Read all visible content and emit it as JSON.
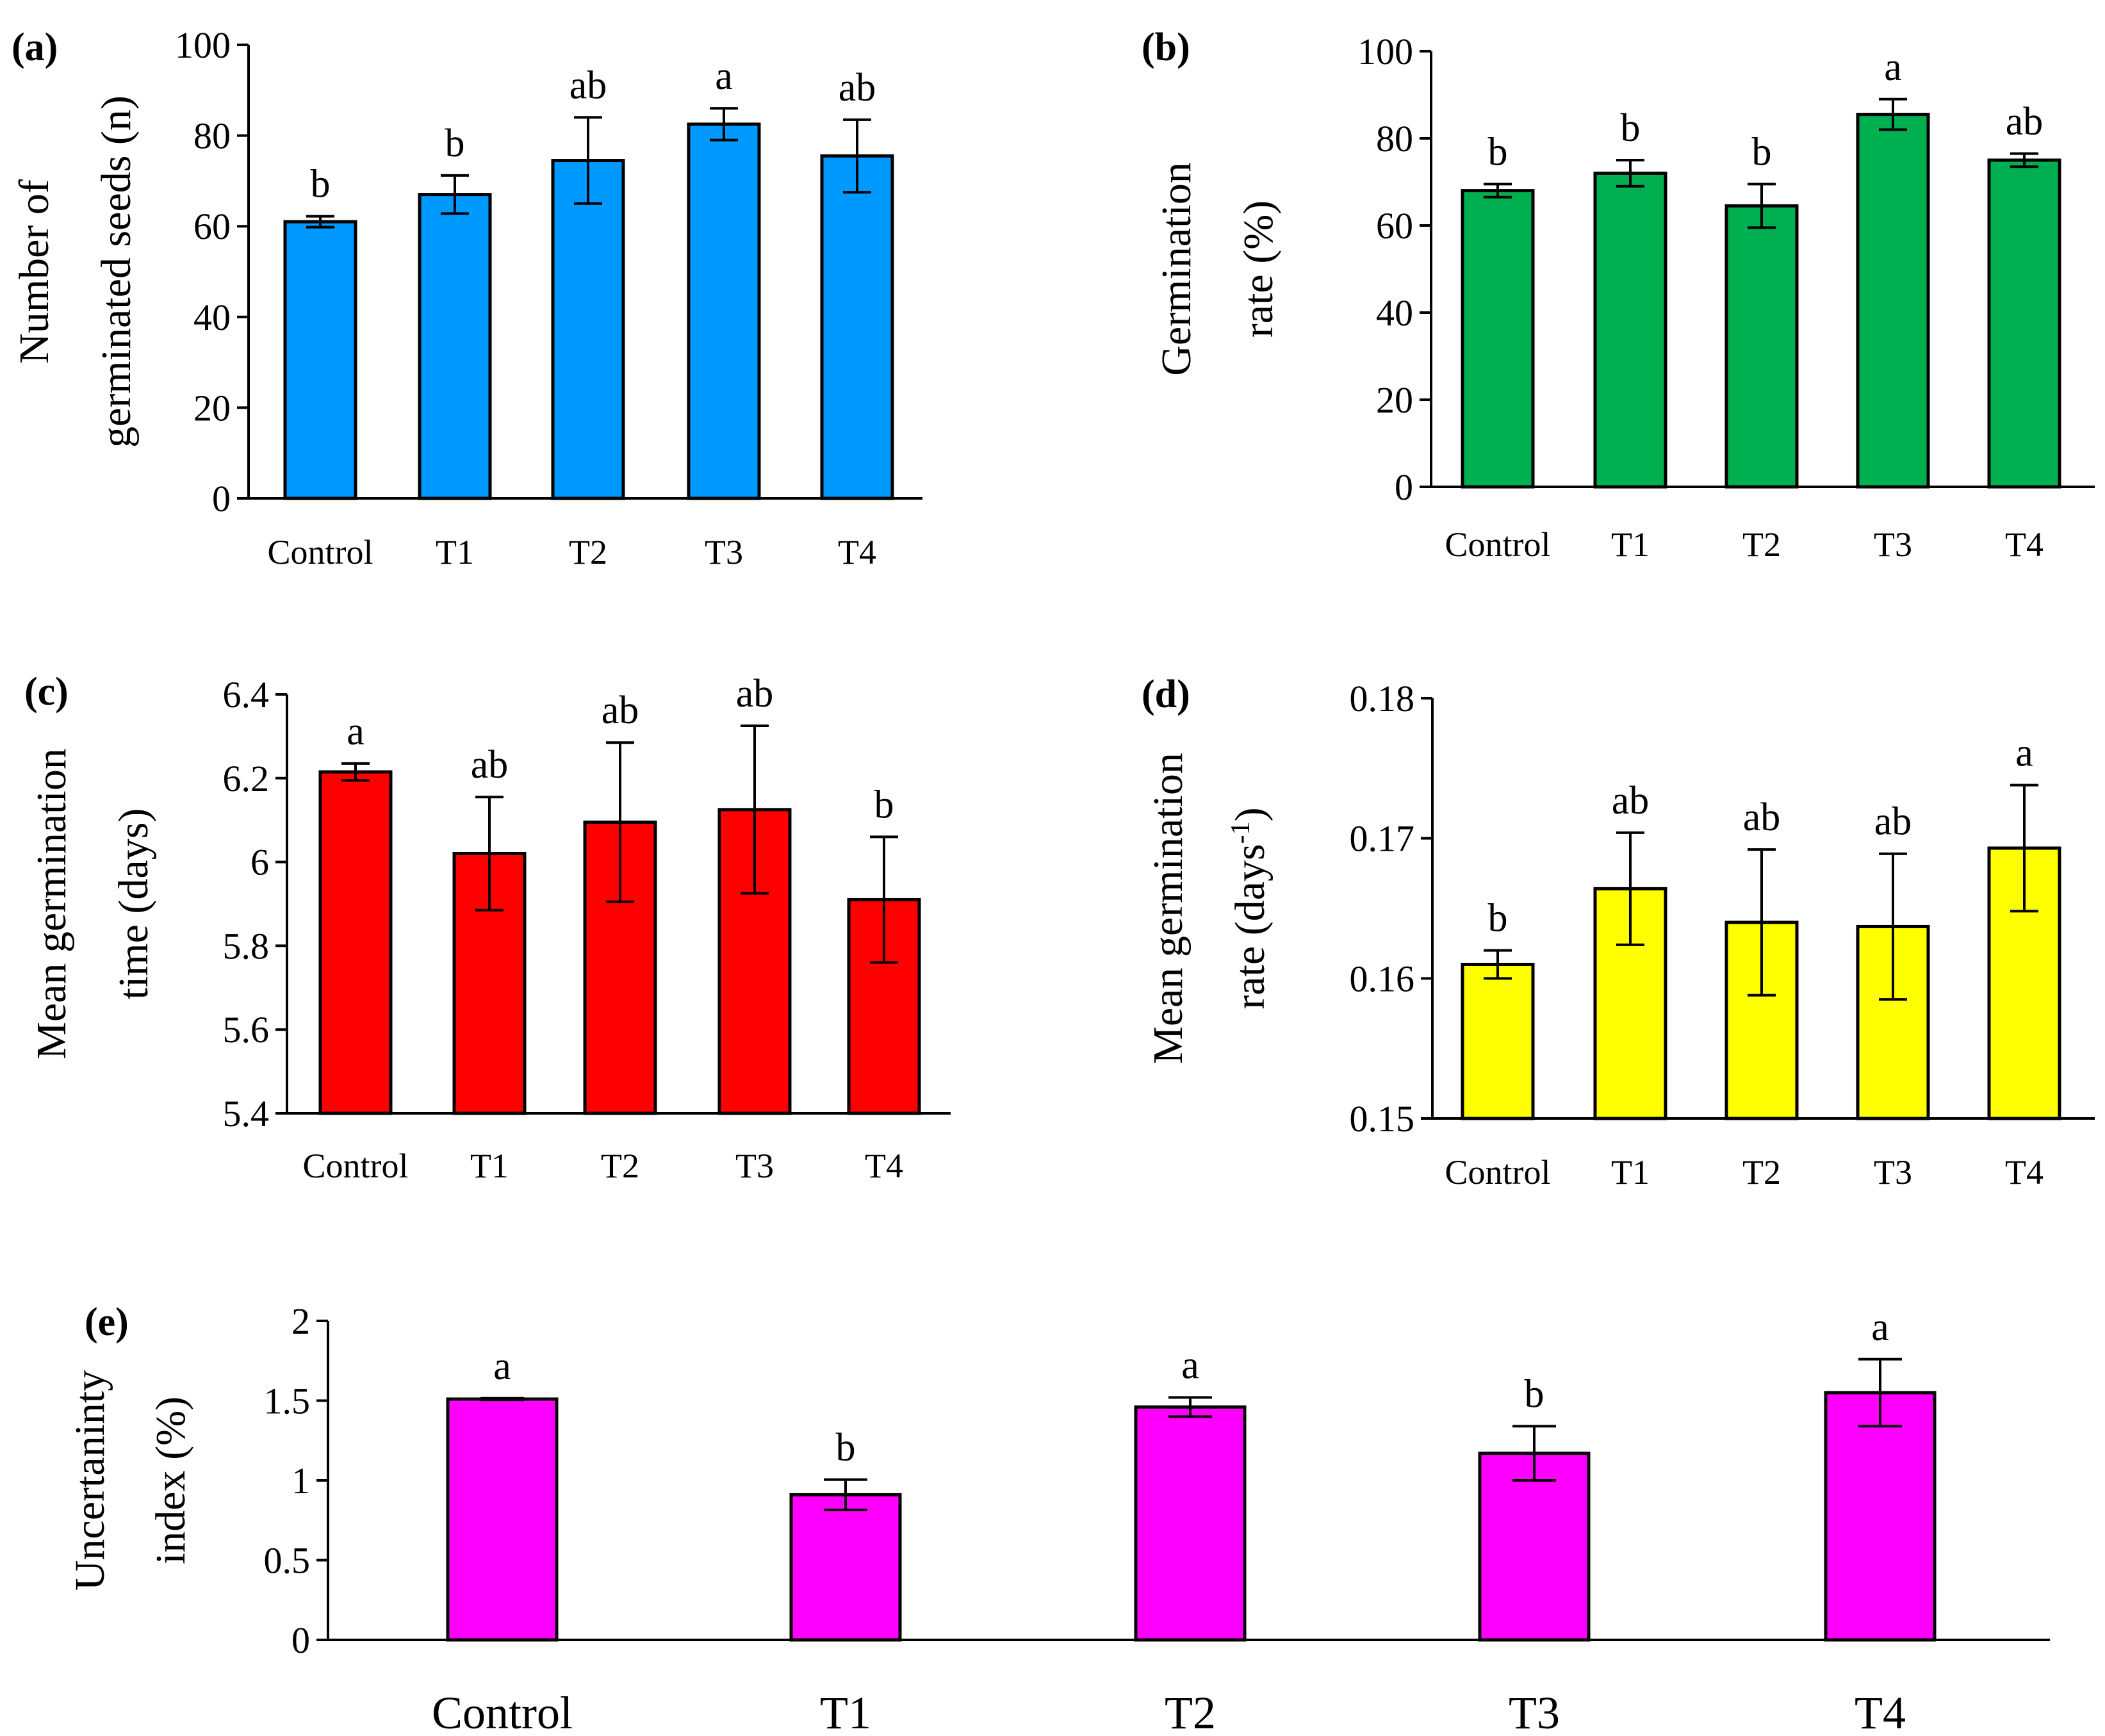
{
  "chart_data": [
    {
      "id": "a",
      "type": "bar",
      "panel_label": "(a)",
      "ylabel_lines": [
        "Number of",
        "germinated seeds (n)"
      ],
      "categories": [
        "Control",
        "T1",
        "T2",
        "T3",
        "T4"
      ],
      "values": [
        61,
        67,
        74.5,
        82.5,
        75.5
      ],
      "errors": [
        1.2,
        4.2,
        9.5,
        3.5,
        8
      ],
      "letters": [
        "b",
        "b",
        "ab",
        "a",
        "ab"
      ],
      "ylim": [
        0,
        100
      ],
      "yticks": [
        0,
        20,
        40,
        60,
        80,
        100
      ],
      "ytick_labels": [
        "0",
        "20",
        "40",
        "60",
        "80",
        "100"
      ],
      "color": "#0099FF"
    },
    {
      "id": "b",
      "type": "bar",
      "panel_label": "(b)",
      "ylabel_lines": [
        "Germination",
        "rate (%)"
      ],
      "categories": [
        "Control",
        "T1",
        "T2",
        "T3",
        "T4"
      ],
      "values": [
        68,
        72,
        64.5,
        85.5,
        75
      ],
      "errors": [
        1.5,
        3,
        5,
        3.5,
        1.5
      ],
      "letters": [
        "b",
        "b",
        "b",
        "a",
        "ab"
      ],
      "ylim": [
        0,
        100
      ],
      "yticks": [
        0,
        20,
        40,
        60,
        80,
        100
      ],
      "ytick_labels": [
        "0",
        "20",
        "40",
        "60",
        "80",
        "100"
      ],
      "color": "#00B050"
    },
    {
      "id": "c",
      "type": "bar",
      "panel_label": "(c)",
      "ylabel_lines": [
        "Mean germination",
        "time (days)"
      ],
      "categories": [
        "Control",
        "T1",
        "T2",
        "T3",
        "T4"
      ],
      "values": [
        6.215,
        6.02,
        6.095,
        6.125,
        5.91
      ],
      "errors": [
        0.02,
        0.135,
        0.19,
        0.2,
        0.15
      ],
      "letters": [
        "a",
        "ab",
        "ab",
        "ab",
        "b"
      ],
      "ylim": [
        5.4,
        6.4
      ],
      "yticks": [
        5.4,
        5.6,
        5.8,
        6.0,
        6.2,
        6.4
      ],
      "ytick_labels": [
        "5.4",
        "5.6",
        "5.8",
        "6",
        "6.2",
        "6.4"
      ],
      "color": "#FF0000"
    },
    {
      "id": "d",
      "type": "bar",
      "panel_label": "(d)",
      "ylabel_lines": [
        "Mean germination",
        "rate (days"
      ],
      "ylabel_sup": "-1",
      "ylabel_tail": ")",
      "categories": [
        "Control",
        "T1",
        "T2",
        "T3",
        "T4"
      ],
      "values": [
        0.161,
        0.1664,
        0.164,
        0.1637,
        0.1693
      ],
      "errors": [
        0.001,
        0.004,
        0.0052,
        0.0052,
        0.0045
      ],
      "letters": [
        "b",
        "ab",
        "ab",
        "ab",
        "a"
      ],
      "ylim": [
        0.15,
        0.18
      ],
      "yticks": [
        0.15,
        0.16,
        0.17,
        0.18
      ],
      "ytick_labels": [
        "0.15",
        "0.16",
        "0.17",
        "0.18"
      ],
      "color": "#FFFF00"
    },
    {
      "id": "e",
      "type": "bar",
      "panel_label": "(e)",
      "ylabel_lines": [
        "Uncertaninty",
        "index (%)"
      ],
      "categories": [
        "Control",
        "T1",
        "T2",
        "T3",
        "T4"
      ],
      "values": [
        1.51,
        0.91,
        1.46,
        1.17,
        1.55
      ],
      "errors": [
        0.005,
        0.095,
        0.06,
        0.17,
        0.21
      ],
      "letters": [
        "a",
        "b",
        "a",
        "b",
        "a"
      ],
      "ylim": [
        0,
        2
      ],
      "yticks": [
        0,
        0.5,
        1,
        1.5,
        2
      ],
      "ytick_labels": [
        "0",
        "0.5",
        "1",
        "1.5",
        "2"
      ],
      "color": "#FF00FF"
    }
  ]
}
